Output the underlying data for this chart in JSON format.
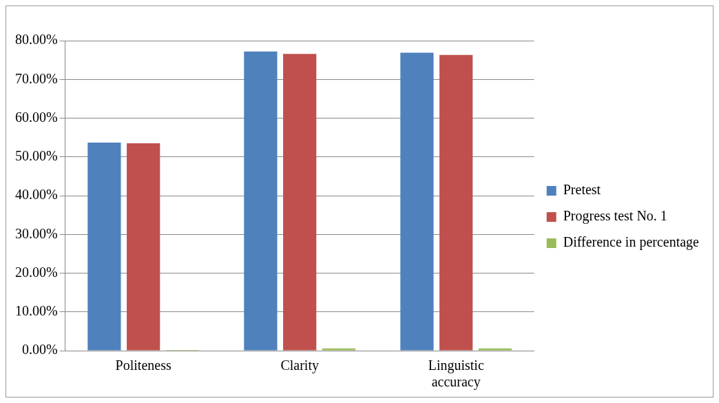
{
  "chart_data": {
    "type": "bar",
    "categories": [
      "Politeness",
      "Clarity",
      "Linguistic\naccuracy"
    ],
    "series": [
      {
        "name": "Pretest",
        "color": "#4f81bd",
        "values": [
          53.7,
          77.2,
          76.9
        ]
      },
      {
        "name": "Progress test No. 1",
        "color": "#c0504d",
        "values": [
          53.5,
          76.6,
          76.3
        ]
      },
      {
        "name": "Difference in percentage",
        "color": "#9bbb59",
        "values": [
          0.2,
          0.6,
          0.6
        ]
      }
    ],
    "ylim": [
      0,
      80
    ],
    "yticks": [
      {
        "value": 0,
        "label": "0.00%"
      },
      {
        "value": 10,
        "label": "10.00%"
      },
      {
        "value": 20,
        "label": "20.00%"
      },
      {
        "value": 30,
        "label": "30.00%"
      },
      {
        "value": 40,
        "label": "40.00%"
      },
      {
        "value": 50,
        "label": "50.00%"
      },
      {
        "value": 60,
        "label": "60.00%"
      },
      {
        "value": 70,
        "label": "70.00%"
      },
      {
        "value": 80,
        "label": "80.00%"
      }
    ],
    "grid": "y",
    "legend": "right"
  }
}
